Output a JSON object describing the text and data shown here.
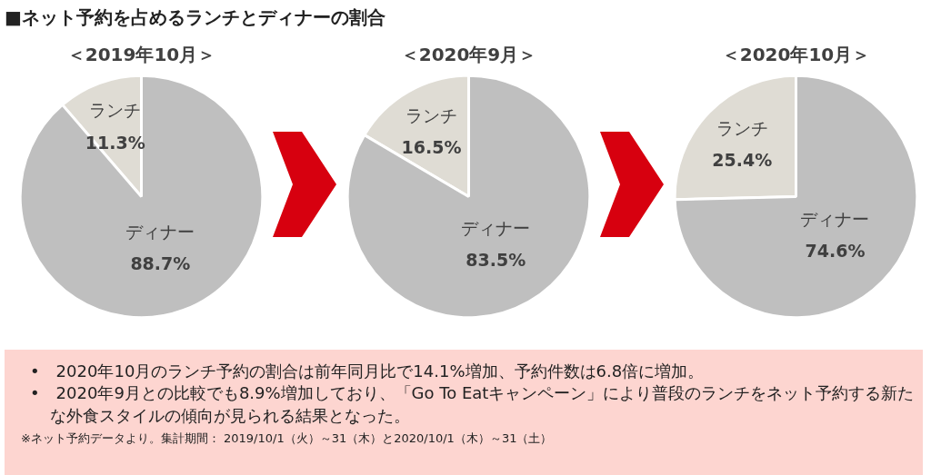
{
  "chart_data": [
    {
      "type": "other",
      "title": "■ネット予約を占めるランチとディナーの割合",
      "annotations": [
        "•　2020年10月のランチ予約の割合は前年同月比で14.1%増加、予約件数は6.8倍に増加。",
        "•　2020年9月との比較でも8.9%増加しており、「Go To Eatキャンペーン」により普段のランチをネット予約する新たな外食スタイルの傾向が見られる結果となった。",
        "※ネット予約データより。集計期間： 2019/10/1（火）～31（木）と2020/10/1（木）～31（土）"
      ]
    },
    {
      "type": "pie",
      "title": "＜2019年10月＞",
      "categories": [
        "ランチ",
        "ディナー"
      ],
      "values": [
        11.3,
        88.7
      ],
      "colors": [
        "#dfdcd4",
        "#bfbfbf"
      ],
      "value_labels": [
        "11.3%",
        "88.7%"
      ]
    },
    {
      "type": "pie",
      "title": "＜2020年9月＞",
      "categories": [
        "ランチ",
        "ディナー"
      ],
      "values": [
        16.5,
        83.5
      ],
      "colors": [
        "#dfdcd4",
        "#bfbfbf"
      ],
      "value_labels": [
        "16.5%",
        "83.5%"
      ]
    },
    {
      "type": "pie",
      "title": "＜2020年10月＞",
      "categories": [
        "ランチ",
        "ディナー"
      ],
      "values": [
        25.4,
        74.6
      ],
      "colors": [
        "#dfdcd4",
        "#bfbfbf"
      ],
      "value_labels": [
        "25.4%",
        "74.6%"
      ]
    }
  ]
}
